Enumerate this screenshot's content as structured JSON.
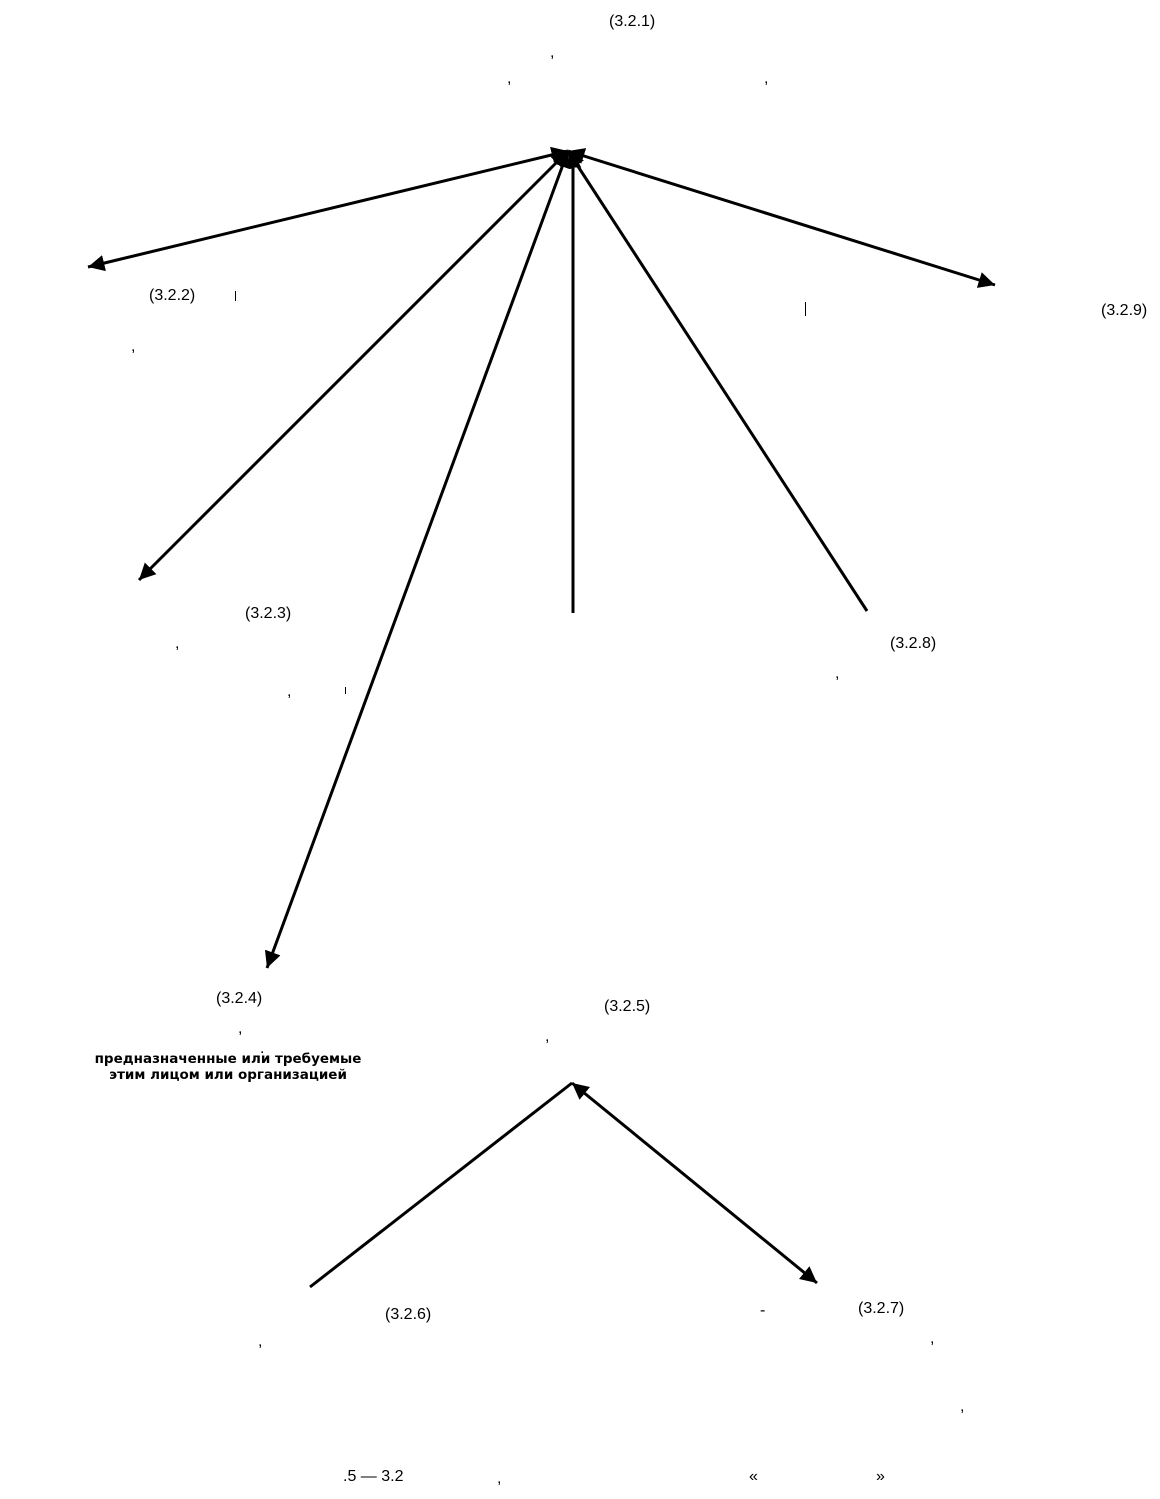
{
  "refs": {
    "r321": "(3.2.1)",
    "r322": "(3.2.2)",
    "r323": "(3.2.3)",
    "r324": "(3.2.4)",
    "r325": "(3.2.5)",
    "r326": "(3.2.6)",
    "r327": "(3.2.7)",
    "r328": "(3.2.8)",
    "r329": "(3.2.9)"
  },
  "note": {
    "line1": "предназначенные или требуемые",
    "line2": "этим лицом или организацией"
  },
  "punct": {
    "comma": ",",
    "dot": ".",
    "dash": "-",
    "quote_open": "«",
    "quote_close": "»"
  },
  "caption": {
    "figure_number": ".5 — 3.2"
  },
  "colors": {
    "ink": "#000000",
    "background": "#ffffff"
  }
}
